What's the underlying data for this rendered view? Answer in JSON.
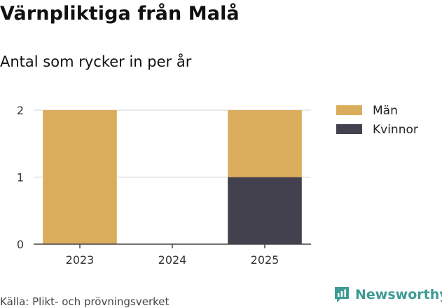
{
  "header": {
    "title": "Värnpliktiga från Malå",
    "subtitle": "Antal som rycker in per år"
  },
  "chart_data": {
    "type": "bar",
    "stacked": true,
    "title": "Värnpliktiga från Malå",
    "subtitle": "Antal som rycker in per år",
    "xlabel": "",
    "ylabel": "",
    "categories": [
      "2023",
      "2024",
      "2025"
    ],
    "series": [
      {
        "name": "Kvinnor",
        "color": "#44414f",
        "values": [
          0,
          0,
          1
        ]
      },
      {
        "name": "Män",
        "color": "#d9ad5c",
        "values": [
          2,
          0,
          1
        ]
      }
    ],
    "legend_order": [
      "Män",
      "Kvinnor"
    ],
    "ylim": [
      0,
      2
    ],
    "yticks": [
      0,
      1,
      2
    ],
    "grid": true,
    "legend_position": "top-right"
  },
  "footer": {
    "source": "Källa: Plikt- och prövningsverket",
    "brand": "Newsworthy",
    "brand_color": "#3e9b95"
  }
}
